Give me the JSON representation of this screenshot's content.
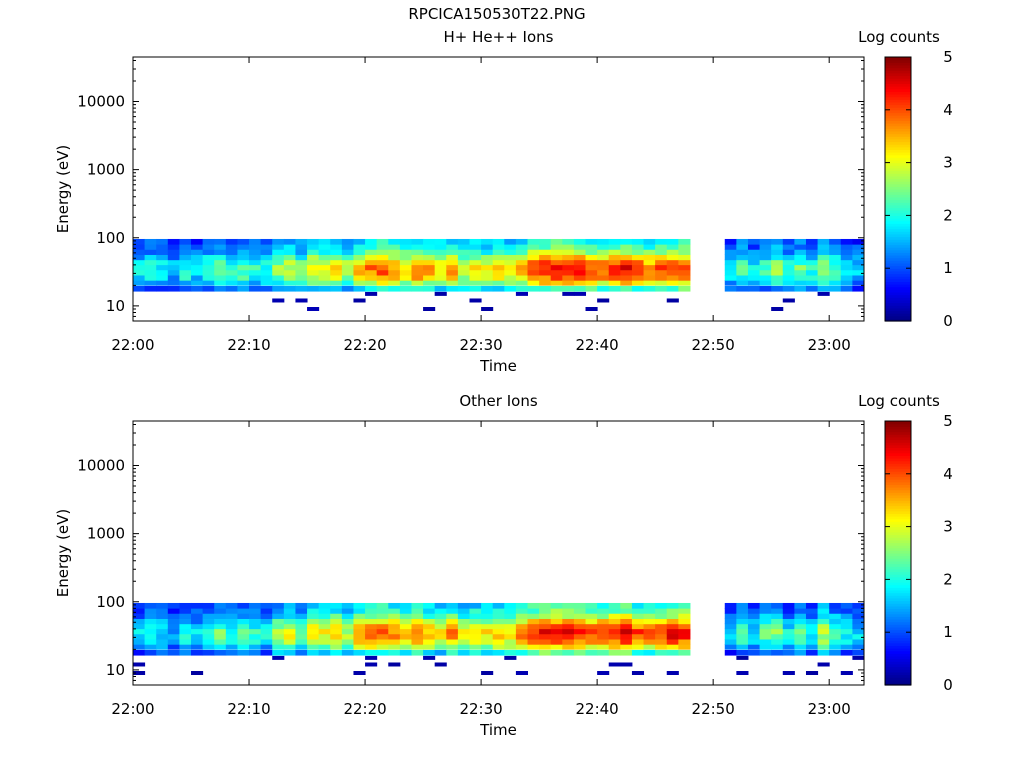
{
  "figure_title": "RPCICA150530T22.PNG",
  "chart_data": [
    {
      "type": "heatmap",
      "title": "H+ He++ Ions",
      "xlabel": "Time",
      "ylabel": "Energy (eV)",
      "y_scale": "log",
      "ylim": [
        6,
        45000
      ],
      "y_ticks": [
        10,
        100,
        1000,
        10000
      ],
      "y_tick_labels": [
        "10",
        "100",
        "1000",
        "10000"
      ],
      "x_range": [
        "22:00",
        "23:03"
      ],
      "x_tick_labels": [
        "22:00",
        "22:10",
        "22:20",
        "22:30",
        "22:40",
        "22:50",
        "23:00"
      ],
      "colorbar": {
        "label": "Log counts",
        "range": [
          0,
          5
        ],
        "ticks": [
          "0",
          "1",
          "2",
          "3",
          "4",
          "5"
        ],
        "colormap": "jet"
      },
      "data_gap": [
        "22:48",
        "22:51"
      ],
      "energy_bins_eV": [
        9,
        12,
        15,
        18,
        22,
        26,
        31,
        37,
        44,
        52,
        62,
        74,
        88
      ],
      "time_minutes": [
        0,
        1,
        2,
        3,
        4,
        5,
        6,
        7,
        8,
        9,
        10,
        11,
        12,
        13,
        14,
        15,
        16,
        17,
        18,
        19,
        20,
        21,
        22,
        23,
        24,
        25,
        26,
        27,
        28,
        29,
        30,
        31,
        32,
        33,
        34,
        35,
        36,
        37,
        38,
        39,
        40,
        41,
        42,
        43,
        44,
        45,
        46,
        47,
        51,
        52,
        53,
        54,
        55,
        56,
        57,
        58,
        59,
        60,
        61,
        62
      ],
      "time_labels": [
        "22:00",
        "22:01",
        "22:02",
        "22:03",
        "22:04",
        "22:05",
        "22:06",
        "22:07",
        "22:08",
        "22:09",
        "22:10",
        "22:11",
        "22:12",
        "22:13",
        "22:14",
        "22:15",
        "22:16",
        "22:17",
        "22:18",
        "22:19",
        "22:20",
        "22:21",
        "22:22",
        "22:23",
        "22:24",
        "22:25",
        "22:26",
        "22:27",
        "22:28",
        "22:29",
        "22:30",
        "22:31",
        "22:32",
        "22:33",
        "22:34",
        "22:35",
        "22:36",
        "22:37",
        "22:38",
        "22:39",
        "22:40",
        "22:41",
        "22:42",
        "22:43",
        "22:44",
        "22:45",
        "22:46",
        "22:47",
        "22:51",
        "22:52",
        "22:53",
        "22:54",
        "22:55",
        "22:56",
        "22:57",
        "22:58",
        "22:59",
        "23:00",
        "23:01",
        "23:02"
      ],
      "peak_log_counts": [
        1.8,
        2.0,
        1.9,
        1.6,
        2.1,
        1.8,
        2.2,
        2.3,
        2.0,
        2.4,
        2.1,
        2.0,
        2.6,
        2.9,
        2.5,
        3.2,
        3.0,
        3.3,
        2.8,
        3.5,
        3.8,
        4.0,
        3.7,
        3.4,
        3.9,
        3.5,
        3.2,
        3.6,
        3.0,
        3.3,
        3.1,
        3.4,
        3.2,
        3.6,
        4.2,
        4.3,
        4.4,
        4.5,
        4.3,
        4.1,
        4.0,
        4.2,
        4.4,
        4.1,
        3.8,
        4.0,
        4.3,
        4.2,
        1.8,
        2.3,
        1.9,
        2.2,
        2.6,
        2.0,
        2.4,
        2.1,
        2.7,
        2.3,
        2.0,
        1.7
      ]
    },
    {
      "type": "heatmap",
      "title": "Other Ions",
      "xlabel": "Time",
      "ylabel": "Energy (eV)",
      "y_scale": "log",
      "ylim": [
        6,
        45000
      ],
      "y_ticks": [
        10,
        100,
        1000,
        10000
      ],
      "y_tick_labels": [
        "10",
        "100",
        "1000",
        "10000"
      ],
      "x_range": [
        "22:00",
        "23:03"
      ],
      "x_tick_labels": [
        "22:00",
        "22:10",
        "22:20",
        "22:30",
        "22:40",
        "22:50",
        "23:00"
      ],
      "colorbar": {
        "label": "Log counts",
        "range": [
          0,
          5
        ],
        "ticks": [
          "0",
          "1",
          "2",
          "3",
          "4",
          "5"
        ],
        "colormap": "jet"
      },
      "data_gap": [
        "22:48",
        "22:51"
      ],
      "energy_bins_eV": [
        9,
        12,
        15,
        18,
        22,
        26,
        31,
        37,
        44,
        52,
        62,
        74,
        88
      ],
      "time_minutes": [
        0,
        1,
        2,
        3,
        4,
        5,
        6,
        7,
        8,
        9,
        10,
        11,
        12,
        13,
        14,
        15,
        16,
        17,
        18,
        19,
        20,
        21,
        22,
        23,
        24,
        25,
        26,
        27,
        28,
        29,
        30,
        31,
        32,
        33,
        34,
        35,
        36,
        37,
        38,
        39,
        40,
        41,
        42,
        43,
        44,
        45,
        46,
        47,
        51,
        52,
        53,
        54,
        55,
        56,
        57,
        58,
        59,
        60,
        61,
        62
      ],
      "time_labels": [
        "22:00",
        "22:01",
        "22:02",
        "22:03",
        "22:04",
        "22:05",
        "22:06",
        "22:07",
        "22:08",
        "22:09",
        "22:10",
        "22:11",
        "22:12",
        "22:13",
        "22:14",
        "22:15",
        "22:16",
        "22:17",
        "22:18",
        "22:19",
        "22:20",
        "22:21",
        "22:22",
        "22:23",
        "22:24",
        "22:25",
        "22:26",
        "22:27",
        "22:28",
        "22:29",
        "22:30",
        "22:31",
        "22:32",
        "22:33",
        "22:34",
        "22:35",
        "22:36",
        "22:37",
        "22:38",
        "22:39",
        "22:40",
        "22:41",
        "22:42",
        "22:43",
        "22:44",
        "22:45",
        "22:46",
        "22:47",
        "22:51",
        "22:52",
        "22:53",
        "22:54",
        "22:55",
        "22:56",
        "22:57",
        "22:58",
        "22:59",
        "23:00",
        "23:01",
        "23:02"
      ],
      "peak_log_counts": [
        1.7,
        2.0,
        1.8,
        1.5,
        2.1,
        1.7,
        2.2,
        2.4,
        2.0,
        2.3,
        2.1,
        1.9,
        2.7,
        3.0,
        2.5,
        3.3,
        3.1,
        3.4,
        2.7,
        3.6,
        3.9,
        4.0,
        3.8,
        3.3,
        3.9,
        3.4,
        3.1,
        3.7,
        3.0,
        3.4,
        3.2,
        3.5,
        3.3,
        3.7,
        4.2,
        4.4,
        4.5,
        4.5,
        4.2,
        4.1,
        4.2,
        4.3,
        4.5,
        4.1,
        3.9,
        4.1,
        4.4,
        4.3,
        1.6,
        2.2,
        1.8,
        2.3,
        2.5,
        1.9,
        2.4,
        2.0,
        2.8,
        2.3,
        1.9,
        1.7
      ]
    }
  ]
}
